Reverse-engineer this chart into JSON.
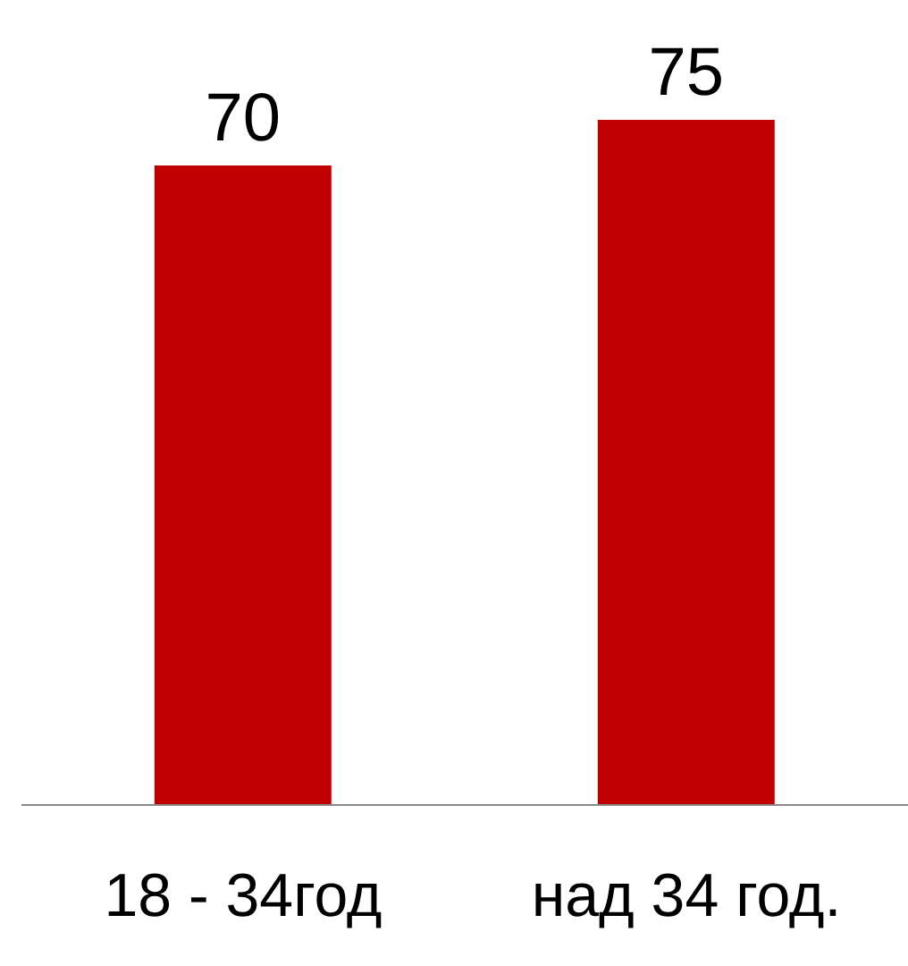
{
  "chart_data": {
    "type": "bar",
    "categories": [
      "18 - 34год",
      "над 34 год."
    ],
    "values": [
      70,
      75
    ],
    "color": "#c00000",
    "data_labels": true
  }
}
